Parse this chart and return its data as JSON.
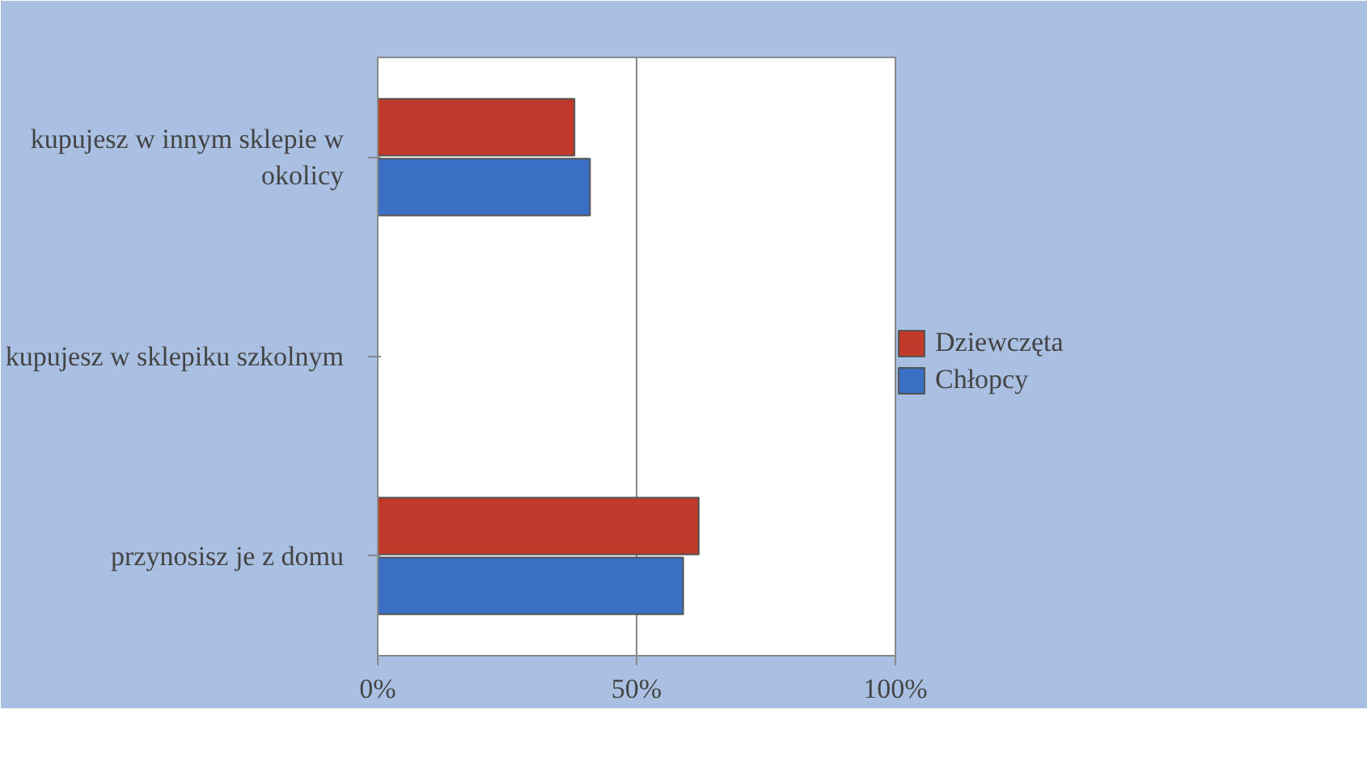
{
  "chart_data": {
    "type": "bar",
    "orientation": "horizontal",
    "categories": [
      "kupujesz w innym sklepie w okolicy",
      "kupujesz w sklepiku szkolnym",
      "przynosisz je z domu"
    ],
    "series": [
      {
        "name": "Dziewczęta",
        "color": "#c0392b",
        "values": [
          38,
          null,
          62
        ]
      },
      {
        "name": "Chłopcy",
        "color": "#3a6fc4",
        "values": [
          41,
          null,
          59
        ]
      }
    ],
    "xlim": [
      0,
      100
    ],
    "xticks": [
      {
        "value": 0,
        "label": "0%"
      },
      {
        "value": 50,
        "label": "50%"
      },
      {
        "value": 100,
        "label": "100%"
      }
    ],
    "grid": "x",
    "legend": "right"
  }
}
